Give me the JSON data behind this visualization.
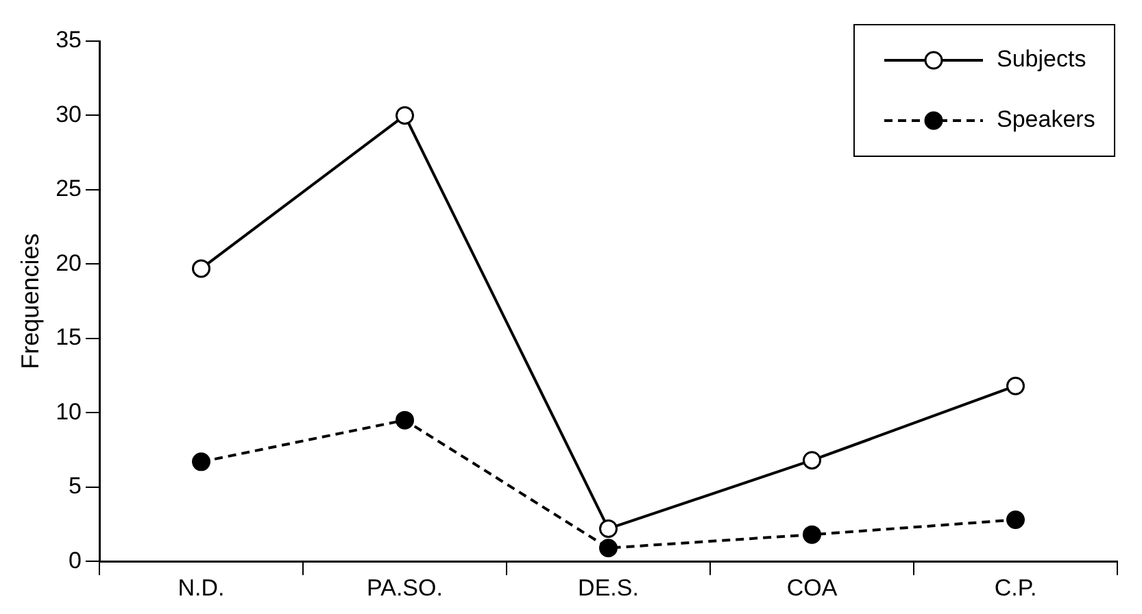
{
  "chart_data": {
    "type": "line",
    "ylabel": "Frequencies",
    "categories": [
      "N.D.",
      "PA.SO.",
      "DE.S.",
      "COA",
      "C.P."
    ],
    "series": [
      {
        "name": "Subjects",
        "color": "#000000",
        "values": [
          19.7,
          30,
          2.2,
          6.8,
          11.8
        ],
        "marker": "circle",
        "line_style": "solid"
      },
      {
        "name": "Speakers",
        "color": "#000000",
        "values": [
          6.7,
          9.5,
          0.9,
          1.8,
          2.8
        ],
        "marker": "circle",
        "line_style": "dashed"
      }
    ],
    "ylim": [
      0,
      35
    ],
    "yticks": [
      0,
      5,
      10,
      15,
      20,
      25,
      30,
      35
    ],
    "grid": false,
    "legend": "top right"
  }
}
